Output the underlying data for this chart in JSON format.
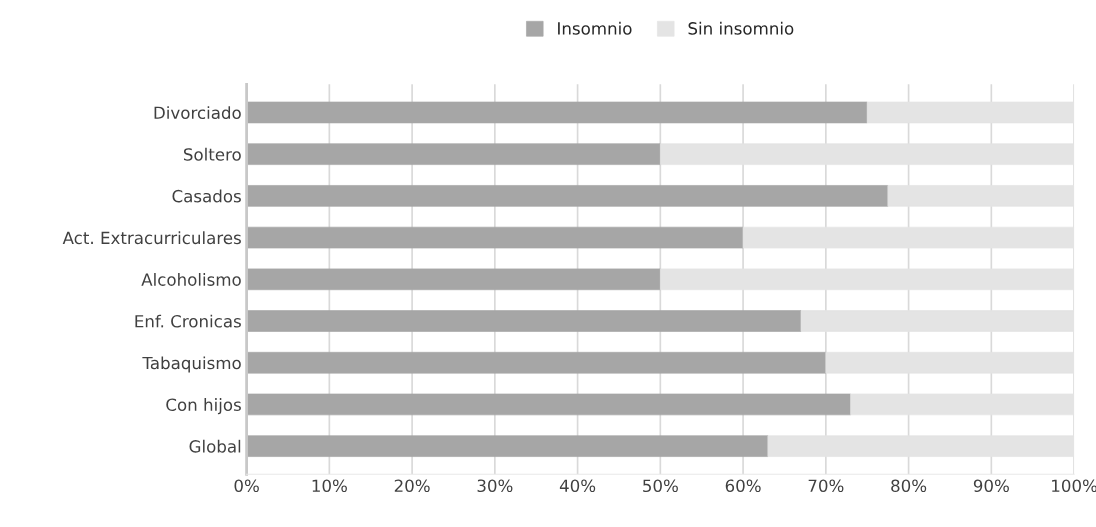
{
  "chart_data": {
    "type": "bar",
    "orientation": "horizontal",
    "stacked": true,
    "categories": [
      "Divorciado",
      "Soltero",
      "Casados",
      "Act. Extracurriculares",
      "Alcoholismo",
      "Enf. Cronicas",
      "Tabaquismo",
      "Con hijos",
      "Global"
    ],
    "series": [
      {
        "name": "Insomnio",
        "color": "#a6a6a6",
        "values": [
          75,
          50,
          77.5,
          60,
          50,
          67,
          70,
          73,
          63
        ]
      },
      {
        "name": "Sin insomnio",
        "color": "#e4e4e4",
        "values": [
          25,
          50,
          22.5,
          40,
          50,
          33,
          30,
          27,
          37
        ]
      }
    ],
    "xlim": [
      0,
      100
    ],
    "xticks": [
      {
        "value": 0,
        "label": "0%"
      },
      {
        "value": 10,
        "label": "10%"
      },
      {
        "value": 20,
        "label": "20%"
      },
      {
        "value": 30,
        "label": "30%"
      },
      {
        "value": 40,
        "label": "40%"
      },
      {
        "value": 50,
        "label": "50%"
      },
      {
        "value": 60,
        "label": "60%"
      },
      {
        "value": 70,
        "label": "70%"
      },
      {
        "value": 80,
        "label": "80%"
      },
      {
        "value": 90,
        "label": "90%"
      },
      {
        "value": 100,
        "label": "100%"
      }
    ],
    "grid": "x",
    "legend": "top"
  }
}
